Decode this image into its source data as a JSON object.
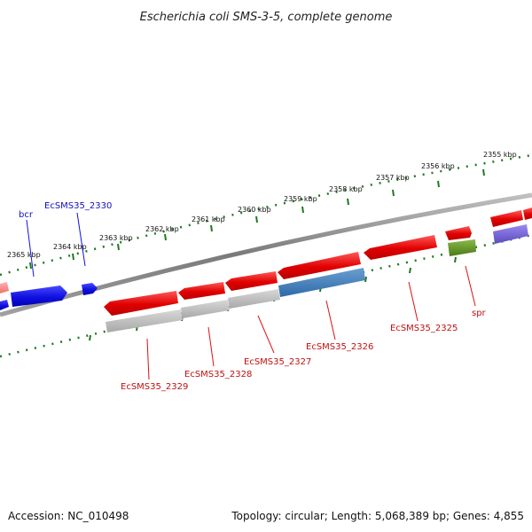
{
  "title": "Escherichia coli SMS-3-5, complete genome",
  "footer": {
    "accession": "Accession: NC_010498",
    "summary": "Topology: circular; Length: 5,068,389 bp; Genes: 4,855"
  },
  "colors": {
    "forward": "#1010e0",
    "reverse": "#e01010",
    "pink": "#f08080",
    "steelblue": "#3a78b5",
    "gray": "#b8b8b8",
    "olive": "#5a8a1e",
    "slate": "#6a5acd",
    "tick": "#1e7a1e",
    "backbone": "#8a8a8a"
  },
  "scale_ticks": [
    "2355 kbp",
    "2356 kbp",
    "2357 kbp",
    "2358 kbp",
    "2359 kbp",
    "2360 kbp",
    "2361 kbp",
    "2362 kbp",
    "2363 kbp",
    "2364 kbp",
    "2365 kbp"
  ],
  "gene_labels": {
    "bcr": "bcr",
    "EcSMS35_2330": "EcSMS35_2330",
    "EcSMS35_2329": "EcSMS35_2329",
    "EcSMS35_2328": "EcSMS35_2328",
    "EcSMS35_2327": "EcSMS35_2327",
    "EcSMS35_2326": "EcSMS35_2326",
    "EcSMS35_2325": "EcSMS35_2325",
    "spr": "spr"
  }
}
